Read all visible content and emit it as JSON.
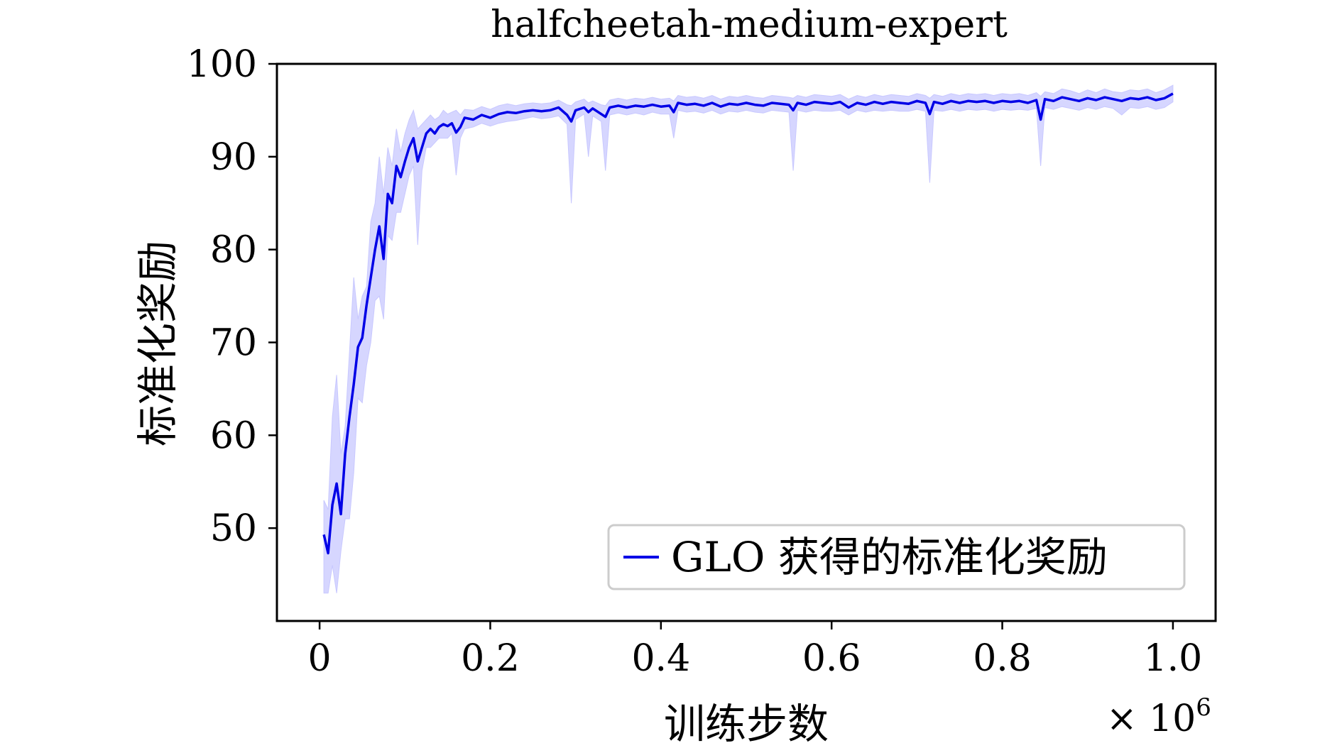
{
  "chart_data": {
    "type": "line",
    "title": "halfcheetah-medium-expert",
    "xlabel": "训练步数",
    "ylabel": "标准化奖励",
    "x_multiplier_label": "× 10",
    "x_multiplier_exp": "6",
    "xlim": [
      -0.05,
      1.05
    ],
    "ylim": [
      40,
      100
    ],
    "xticks": [
      0,
      0.2,
      0.4,
      0.6,
      0.8,
      1.0
    ],
    "xtick_labels": [
      "0",
      "0.2",
      "0.4",
      "0.6",
      "0.8",
      "1.0"
    ],
    "yticks": [
      50,
      60,
      70,
      80,
      90,
      100
    ],
    "ytick_labels": [
      "50",
      "60",
      "70",
      "80",
      "90",
      "100"
    ],
    "grid": false,
    "legend_position": "lower-right",
    "series": [
      {
        "name": "GLO 获得的标准化奖励",
        "color": "#0000e6",
        "band_color": "#c8c8ff",
        "x": [
          0.005,
          0.01,
          0.015,
          0.02,
          0.025,
          0.03,
          0.035,
          0.04,
          0.045,
          0.05,
          0.055,
          0.06,
          0.065,
          0.07,
          0.075,
          0.08,
          0.085,
          0.09,
          0.095,
          0.1,
          0.105,
          0.11,
          0.115,
          0.12,
          0.125,
          0.13,
          0.135,
          0.14,
          0.145,
          0.15,
          0.155,
          0.16,
          0.165,
          0.17,
          0.18,
          0.19,
          0.2,
          0.21,
          0.22,
          0.23,
          0.24,
          0.25,
          0.26,
          0.27,
          0.28,
          0.29,
          0.295,
          0.3,
          0.31,
          0.315,
          0.32,
          0.33,
          0.335,
          0.34,
          0.35,
          0.36,
          0.37,
          0.38,
          0.39,
          0.4,
          0.41,
          0.415,
          0.42,
          0.43,
          0.44,
          0.45,
          0.46,
          0.47,
          0.48,
          0.49,
          0.5,
          0.51,
          0.52,
          0.53,
          0.54,
          0.55,
          0.555,
          0.56,
          0.57,
          0.58,
          0.59,
          0.6,
          0.61,
          0.62,
          0.63,
          0.64,
          0.65,
          0.66,
          0.67,
          0.68,
          0.69,
          0.7,
          0.71,
          0.715,
          0.72,
          0.73,
          0.74,
          0.75,
          0.76,
          0.77,
          0.78,
          0.79,
          0.8,
          0.81,
          0.82,
          0.83,
          0.84,
          0.845,
          0.85,
          0.86,
          0.87,
          0.88,
          0.89,
          0.9,
          0.91,
          0.92,
          0.93,
          0.94,
          0.95,
          0.96,
          0.97,
          0.98,
          0.99,
          1.0
        ],
        "y": [
          49.3,
          47.3,
          52.5,
          54.8,
          51.5,
          58.0,
          62.0,
          65.5,
          69.5,
          70.5,
          74.0,
          77.0,
          80.0,
          82.5,
          79.0,
          86.0,
          85.0,
          89.0,
          87.8,
          89.5,
          91.0,
          92.0,
          89.5,
          91.0,
          92.5,
          93.0,
          92.5,
          93.2,
          93.5,
          93.3,
          93.6,
          92.6,
          93.2,
          94.2,
          94.0,
          94.5,
          94.2,
          94.6,
          94.8,
          94.7,
          94.9,
          95.0,
          94.9,
          95.0,
          95.3,
          94.5,
          93.8,
          95.0,
          95.3,
          94.8,
          95.2,
          94.6,
          94.3,
          95.3,
          95.5,
          95.3,
          95.5,
          95.4,
          95.6,
          95.4,
          95.5,
          94.8,
          95.8,
          95.6,
          95.7,
          95.5,
          95.8,
          95.4,
          95.7,
          95.6,
          95.8,
          95.6,
          95.5,
          95.8,
          95.7,
          95.6,
          95.0,
          95.8,
          95.6,
          95.9,
          95.8,
          95.7,
          95.9,
          95.3,
          95.8,
          95.6,
          95.9,
          95.7,
          95.9,
          95.8,
          95.7,
          96.0,
          95.8,
          94.6,
          95.9,
          95.7,
          96.0,
          95.8,
          96.0,
          95.9,
          96.0,
          95.8,
          96.0,
          95.9,
          96.0,
          95.8,
          96.1,
          94.0,
          96.2,
          96.0,
          96.4,
          96.2,
          96.0,
          96.3,
          96.1,
          96.4,
          96.2,
          96.0,
          96.3,
          96.2,
          96.4,
          96.1,
          96.3,
          96.8
        ],
        "lower": [
          43.0,
          43.0,
          46.0,
          43.0,
          47.5,
          51.0,
          51.0,
          56.0,
          64.0,
          63.5,
          67.5,
          70.0,
          74.5,
          75.0,
          72.5,
          81.5,
          81.0,
          84.0,
          84.0,
          86.0,
          88.0,
          89.0,
          80.5,
          88.5,
          91.0,
          91.0,
          91.5,
          92.0,
          92.0,
          92.0,
          92.5,
          88.0,
          92.0,
          93.0,
          93.2,
          93.6,
          93.3,
          93.6,
          93.8,
          93.9,
          94.1,
          94.3,
          94.1,
          94.2,
          94.4,
          93.5,
          85.0,
          94.0,
          94.6,
          90.0,
          94.4,
          93.8,
          88.5,
          94.5,
          94.7,
          94.5,
          94.7,
          94.5,
          94.8,
          94.6,
          94.6,
          92.0,
          95.0,
          94.8,
          94.9,
          94.7,
          95.0,
          94.6,
          94.9,
          94.8,
          95.0,
          94.8,
          94.7,
          95.0,
          94.9,
          94.8,
          88.5,
          95.0,
          94.8,
          95.0,
          94.9,
          94.9,
          95.0,
          94.5,
          95.0,
          94.8,
          95.0,
          94.9,
          95.0,
          94.9,
          94.9,
          95.1,
          94.9,
          87.2,
          95.0,
          94.9,
          95.1,
          94.9,
          95.1,
          95.0,
          95.1,
          94.9,
          95.1,
          95.0,
          95.1,
          95.0,
          95.2,
          89.0,
          95.3,
          95.1,
          95.4,
          95.2,
          95.0,
          95.3,
          95.1,
          95.4,
          95.2,
          94.5,
          95.3,
          95.2,
          95.4,
          95.1,
          95.3,
          95.9
        ],
        "upper": [
          53.0,
          52.0,
          62.0,
          66.5,
          58.0,
          61.0,
          69.0,
          77.0,
          72.5,
          75.0,
          76.0,
          83.0,
          85.0,
          90.0,
          86.0,
          91.0,
          89.0,
          93.0,
          90.5,
          92.5,
          94.0,
          95.0,
          93.0,
          93.5,
          94.0,
          94.5,
          94.0,
          94.3,
          95.0,
          94.6,
          94.8,
          95.0,
          94.5,
          95.1,
          95.0,
          95.4,
          95.1,
          95.5,
          95.7,
          95.5,
          95.7,
          95.8,
          95.7,
          95.8,
          96.1,
          95.6,
          95.5,
          95.9,
          96.2,
          95.8,
          96.0,
          95.6,
          95.5,
          96.1,
          96.3,
          96.1,
          96.3,
          96.2,
          96.4,
          96.2,
          96.3,
          96.0,
          96.6,
          96.4,
          96.5,
          96.3,
          96.6,
          96.2,
          96.5,
          96.4,
          96.6,
          96.4,
          96.3,
          96.6,
          96.5,
          96.4,
          96.3,
          96.6,
          96.4,
          96.7,
          96.6,
          96.5,
          96.7,
          96.2,
          96.6,
          96.4,
          96.7,
          96.5,
          96.7,
          96.6,
          96.5,
          96.8,
          96.6,
          96.3,
          96.7,
          96.5,
          96.8,
          96.6,
          96.8,
          96.7,
          96.8,
          96.6,
          96.8,
          96.7,
          96.8,
          96.6,
          96.9,
          96.5,
          97.0,
          96.8,
          97.3,
          97.1,
          96.8,
          97.2,
          96.9,
          97.3,
          97.0,
          96.9,
          97.2,
          97.1,
          97.3,
          96.9,
          97.2,
          97.7
        ]
      }
    ]
  }
}
